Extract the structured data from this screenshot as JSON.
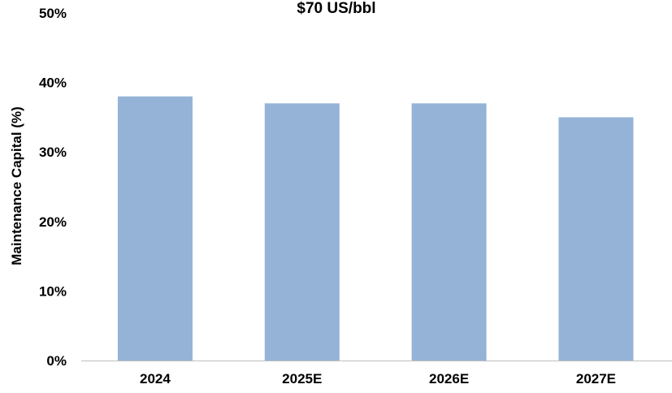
{
  "chart_data": {
    "type": "bar",
    "title": "$70 US/bbl",
    "xlabel": "",
    "ylabel": "Maintenance Capital (%)",
    "categories": [
      "2024",
      "2025E",
      "2026E",
      "2027E"
    ],
    "values": [
      38,
      37,
      37,
      35
    ],
    "ylim": [
      0,
      50
    ],
    "yticks": [
      0,
      10,
      20,
      30,
      40,
      50
    ],
    "ytick_labels": [
      "0%",
      "10%",
      "20%",
      "30%",
      "40%",
      "50%"
    ],
    "bar_color": "#95B3D7",
    "axis_color": "#BFBFBF",
    "grid": false,
    "legend": "none"
  }
}
